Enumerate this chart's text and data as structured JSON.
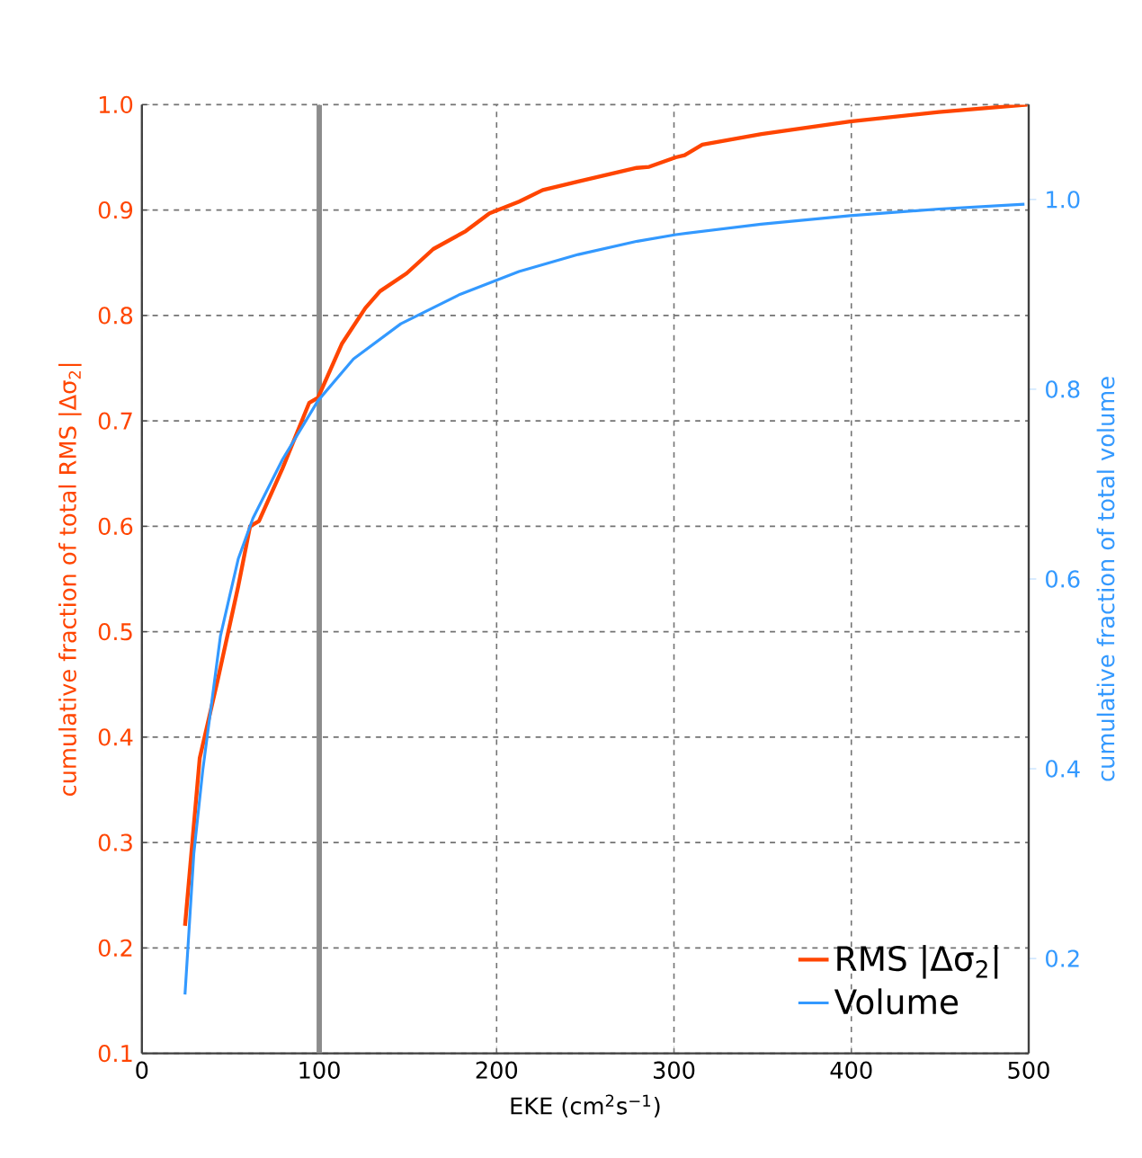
{
  "chart_data": {
    "type": "line",
    "xlabel": "EKE (cm$^{2}$s$^{−1}$)",
    "ylabel": "cumulative fraction of total RMS |Δσ$_{2}$|",
    "y2label": "cumulative fraction of total volume",
    "xlim": [
      0,
      500
    ],
    "xticks": [
      0,
      100,
      200,
      300,
      400,
      500
    ],
    "ylim": [
      0.1,
      1.0
    ],
    "yticks": [
      {
        "value": 0.1,
        "label": "0.1"
      },
      {
        "value": 0.2,
        "label": "0.2"
      },
      {
        "value": 0.3,
        "label": "0.3"
      },
      {
        "value": 0.4,
        "label": "0.4"
      },
      {
        "value": 0.5,
        "label": "0.5"
      },
      {
        "value": 0.6,
        "label": "0.6"
      },
      {
        "value": 0.7,
        "label": "0.7"
      },
      {
        "value": 0.8,
        "label": "0.8"
      },
      {
        "value": 0.9,
        "label": "0.9"
      },
      {
        "value": 1.0,
        "label": "1.0"
      }
    ],
    "y2lim": [
      0.1,
      1.1
    ],
    "y2ticks": [
      {
        "value": 0.2,
        "label": "0.2"
      },
      {
        "value": 0.4,
        "label": "0.4"
      },
      {
        "value": 0.6,
        "label": "0.6"
      },
      {
        "value": 0.8,
        "label": "0.8"
      },
      {
        "value": 1.0,
        "label": "1.0"
      }
    ],
    "grid": true,
    "legend": "bottom right",
    "marker": "none",
    "line_style": "solid",
    "ref_lines": [
      {
        "axis": "x",
        "value": 100,
        "color": "#8c8c8c"
      }
    ],
    "series": [
      {
        "name": "RMS |Δσ$_{2}$|",
        "color": "#ff4500",
        "x": [
          24.3,
          32.6,
          42.6,
          54.3,
          61,
          66,
          79.3,
          94.3,
          99.3,
          112.7,
          126,
          134.3,
          149.3,
          164.3,
          182.6,
          196,
          212.7,
          226,
          246,
          279,
          286,
          301,
          306,
          316,
          349.3,
          399.3,
          449.3,
          499.3
        ],
        "values": [
          0.221,
          0.38,
          0.453,
          0.543,
          0.6,
          0.605,
          0.655,
          0.717,
          0.722,
          0.773,
          0.807,
          0.823,
          0.84,
          0.863,
          0.88,
          0.897,
          0.908,
          0.919,
          0.927,
          0.94,
          0.941,
          0.95,
          0.952,
          0.962,
          0.972,
          0.984,
          0.993,
          1.0
        ]
      },
      {
        "name": "Volume",
        "color": "#3399ff",
        "axis": "y2",
        "x": [
          24.3,
          29.3,
          34.3,
          44.3,
          54.3,
          62.6,
          79.3,
          99.3,
          119.3,
          146,
          179.3,
          212.6,
          246,
          279.3,
          301,
          349,
          399.3,
          449.3,
          497.6
        ],
        "values": [
          0.162,
          0.311,
          0.398,
          0.54,
          0.621,
          0.664,
          0.726,
          0.788,
          0.832,
          0.869,
          0.9,
          0.924,
          0.942,
          0.956,
          0.963,
          0.974,
          0.983,
          0.99,
          0.995
        ]
      }
    ]
  }
}
